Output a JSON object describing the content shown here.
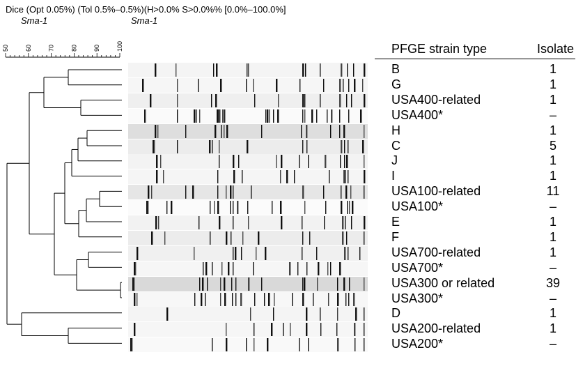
{
  "header": {
    "line1": "Dice (Opt 0.05%) (Tol 0.5%–0.5%)(H>0.0% S>0.0%% [0.0%–100.0%]",
    "enzyme_left": "Sma-1",
    "enzyme_right": "Sma-1"
  },
  "scale": {
    "ticks": [
      "50",
      "60",
      "70",
      "80",
      "90",
      "100"
    ]
  },
  "table": {
    "col_strain": "PFGE strain type",
    "col_isolate": "Isolate",
    "rows": [
      {
        "strain": "B",
        "isolate": "1"
      },
      {
        "strain": "G",
        "isolate": "1"
      },
      {
        "strain": "USA400-related",
        "isolate": "1"
      },
      {
        "strain": "USA400*",
        "isolate": "–"
      },
      {
        "strain": "H",
        "isolate": "1"
      },
      {
        "strain": "C",
        "isolate": "5"
      },
      {
        "strain": "J",
        "isolate": "1"
      },
      {
        "strain": "I",
        "isolate": "1"
      },
      {
        "strain": "USA100-related",
        "isolate": "11"
      },
      {
        "strain": "USA100*",
        "isolate": "–"
      },
      {
        "strain": "E",
        "isolate": "1"
      },
      {
        "strain": "F",
        "isolate": "1"
      },
      {
        "strain": "USA700-related",
        "isolate": "1"
      },
      {
        "strain": "USA700*",
        "isolate": "–"
      },
      {
        "strain": "USA300 or related",
        "isolate": "39"
      },
      {
        "strain": "USA300*",
        "isolate": "–"
      },
      {
        "strain": "D",
        "isolate": "1"
      },
      {
        "strain": "USA200-related",
        "isolate": "1"
      },
      {
        "strain": "USA200*",
        "isolate": "–"
      }
    ]
  }
}
